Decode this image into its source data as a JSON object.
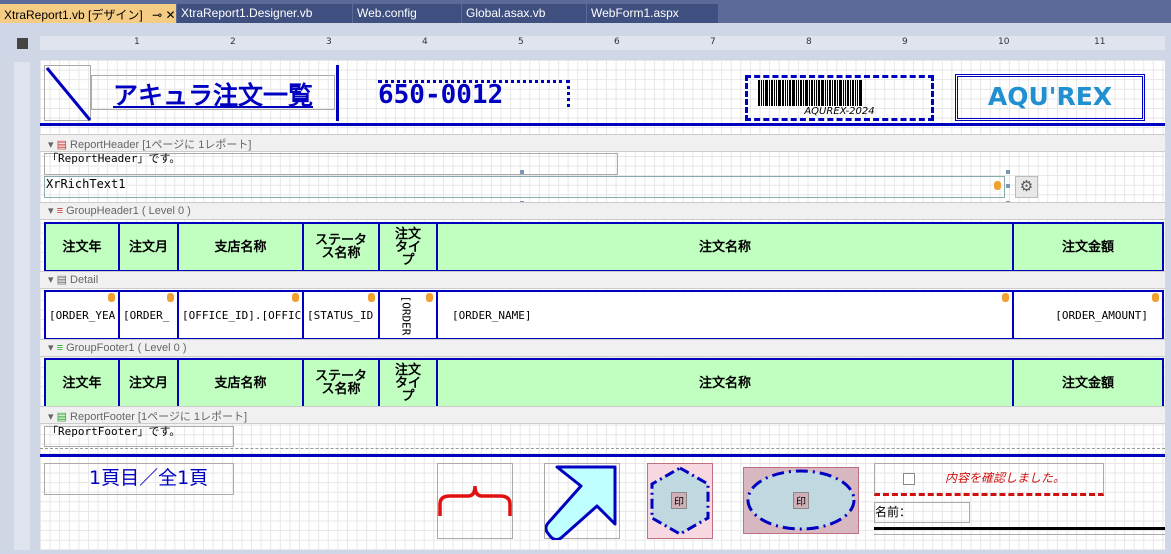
{
  "tabs": [
    {
      "label": "XtraReport1.vb [デザイン]",
      "active": true
    },
    {
      "label": "XtraReport1.Designer.vb"
    },
    {
      "label": "Web.config"
    },
    {
      "label": "Global.asax.vb"
    },
    {
      "label": "WebForm1.aspx"
    }
  ],
  "tab_pin": "⊸",
  "tab_close": "✕",
  "ruler_numbers": [
    "1",
    "2",
    "3",
    "4",
    "5",
    "6",
    "7",
    "8",
    "9",
    "10",
    "11"
  ],
  "page_header": {
    "title": "アキュラ注文一覧",
    "zip": "650-0012",
    "barcode_text": "AQUREX-2024",
    "logo": "AQU'REX"
  },
  "bands": {
    "report_header": "ReportHeader [1ページに 1レポート]",
    "group_header": "GroupHeader1 ( Level 0 )",
    "detail": "Detail",
    "group_footer": "GroupFooter1 ( Level 0 )",
    "report_footer": "ReportFooter [1ページに 1レポート]"
  },
  "report_header": {
    "label": "「ReportHeader」です。",
    "rich_text": "XrRichText1"
  },
  "columns": [
    "注文年",
    "注文月",
    "支店名称",
    "ステータス名称",
    "注文タイプ",
    "注文名称",
    "注文金額"
  ],
  "detail_cells": [
    "[ORDER_YEA",
    "[ORDER_",
    "[OFFICE_ID].[OFFIC",
    "[STATUS_ID",
    "[ORDER",
    "[ORDER_NAME]",
    "[ORDER_AMOUNT]"
  ],
  "report_footer": {
    "label": "「ReportFooter」です。"
  },
  "page_footer": {
    "page_info": "1頁目／全1頁",
    "stamp1": "印",
    "stamp2": "印",
    "check_label": "内容を確認しました。",
    "name_label": "名前："
  },
  "colors": {
    "accent": "#0000c0",
    "header_fill": "#c0ffc0",
    "check_red": "#d01010"
  }
}
